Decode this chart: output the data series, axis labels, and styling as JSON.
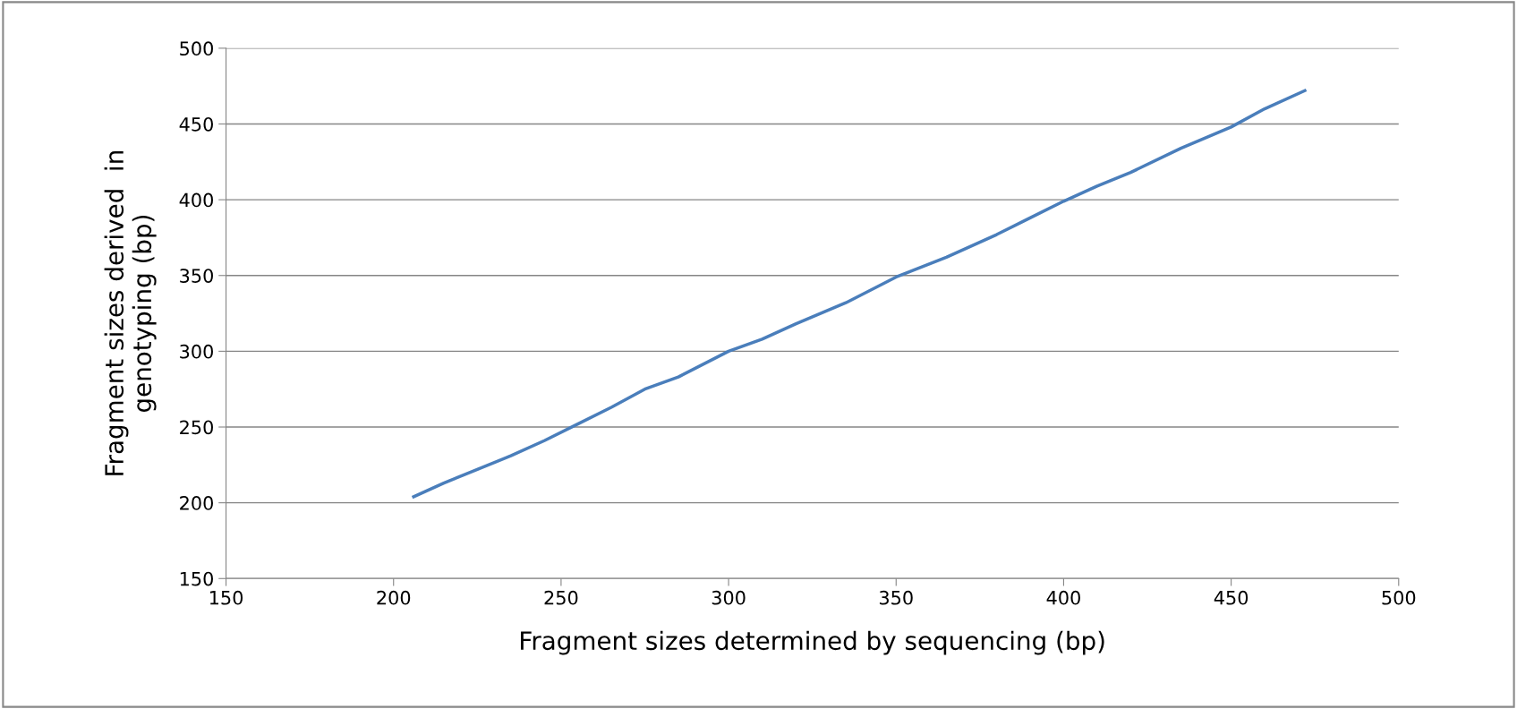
{
  "chart_data": {
    "type": "line",
    "xlabel": "Fragment sizes determined by sequencing (bp)",
    "ylabel": "Fragment sizes derived  in\ngenotyping (bp)",
    "x": [
      206,
      215,
      225,
      235,
      245,
      255,
      265,
      275,
      285,
      300,
      310,
      320,
      335,
      350,
      365,
      380,
      390,
      400,
      410,
      420,
      435,
      450,
      460,
      472
    ],
    "series": [
      {
        "color": "#4a7ebb",
        "values": [
          204,
          213,
          222,
          231,
          241,
          252,
          263,
          275,
          283,
          300,
          308,
          318,
          332,
          349,
          362,
          377,
          388,
          399,
          409,
          418,
          434,
          448,
          460,
          472
        ]
      }
    ],
    "xlim": [
      150,
      500
    ],
    "ylim": [
      150,
      500
    ],
    "xticks": [
      150,
      200,
      250,
      300,
      350,
      400,
      450,
      500
    ],
    "yticks": [
      150,
      200,
      250,
      300,
      350,
      400,
      450,
      500
    ],
    "grid": "y",
    "marker": "none",
    "line_style": "solid"
  }
}
